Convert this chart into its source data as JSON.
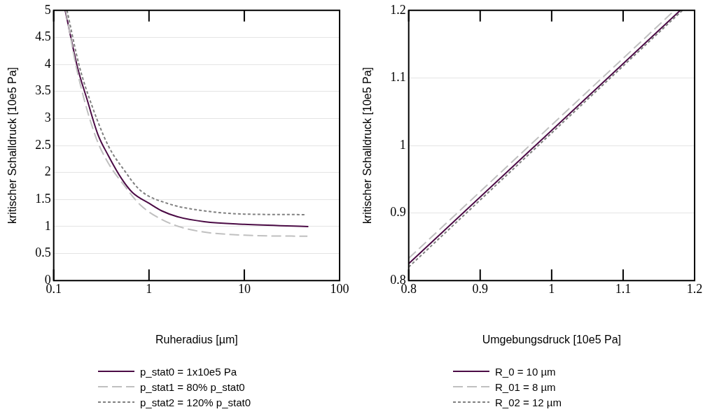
{
  "chart_data": [
    {
      "type": "line",
      "xlabel": "Ruheradius [µm]",
      "ylabel": "kritischer Schalldruck [10e5 Pa]",
      "log": "x",
      "xlim": [
        0.1,
        100
      ],
      "xticks": [
        0.1,
        1,
        10,
        100
      ],
      "ylim": [
        0,
        5
      ],
      "yticks": [
        0,
        0.5,
        1,
        1.5,
        2,
        2.5,
        3,
        3.5,
        4,
        4.5,
        5
      ],
      "grid": "y",
      "legend": "bottom",
      "marker": "none",
      "series": [
        {
          "name": "p_stat0 = 1x10e5 Pa",
          "color": "#4b0b45",
          "line_style": "solid",
          "x": [
            0.132,
            0.178,
            0.224,
            0.29,
            0.375,
            0.518,
            0.67,
            1,
            1.36,
            2,
            3.8,
            10,
            47
          ],
          "values": [
            5,
            3.94,
            3.35,
            2.71,
            2.31,
            1.88,
            1.63,
            1.43,
            1.29,
            1.18,
            1.09,
            1.04,
            1.0
          ]
        },
        {
          "name": "p_stat1 = 80% p_stat0",
          "color": "#c0c0c0",
          "line_style": "dashed",
          "x": [
            0.134,
            0.173,
            0.272,
            0.375,
            0.55,
            0.81,
            1.36,
            2.6,
            10,
            46
          ],
          "values": [
            5,
            3.94,
            2.69,
            2.17,
            1.76,
            1.4,
            1.13,
            0.95,
            0.84,
            0.82
          ]
        },
        {
          "name": "p_stat2 = 120% p_stat0",
          "color": "#808080",
          "line_style": "dotted",
          "x": [
            0.138,
            0.185,
            0.255,
            0.375,
            0.55,
            0.81,
            1.55,
            3.8,
            10,
            43
          ],
          "values": [
            5,
            3.98,
            3.21,
            2.49,
            2.04,
            1.67,
            1.43,
            1.29,
            1.23,
            1.22
          ]
        }
      ]
    },
    {
      "type": "line",
      "xlabel": "Umgebungsdruck [10e5 Pa]",
      "ylabel": "kritischer Schalldruck [10e5 Pa]",
      "xlim": [
        0.8,
        1.2
      ],
      "xticks": [
        0.8,
        0.9,
        1,
        1.1,
        1.2
      ],
      "ylim": [
        0.8,
        1.2
      ],
      "yticks": [
        0.8,
        0.9,
        1,
        1.1,
        1.2
      ],
      "grid": "y",
      "legend": "bottom",
      "marker": "none",
      "series": [
        {
          "name": "R_0 = 10 µm",
          "color": "#4b0b45",
          "line_style": "solid",
          "x": [
            0.8,
            1.18
          ],
          "values": [
            0.825,
            1.2
          ]
        },
        {
          "name": "R_01 = 8 µm",
          "color": "#c0c0c0",
          "line_style": "dashed",
          "x": [
            0.8,
            1.172
          ],
          "values": [
            0.833,
            1.2
          ]
        },
        {
          "name": "R_02 = 12 µm",
          "color": "#808080",
          "line_style": "dotted",
          "x": [
            0.8,
            1.183
          ],
          "values": [
            0.82,
            1.2
          ]
        }
      ]
    }
  ]
}
